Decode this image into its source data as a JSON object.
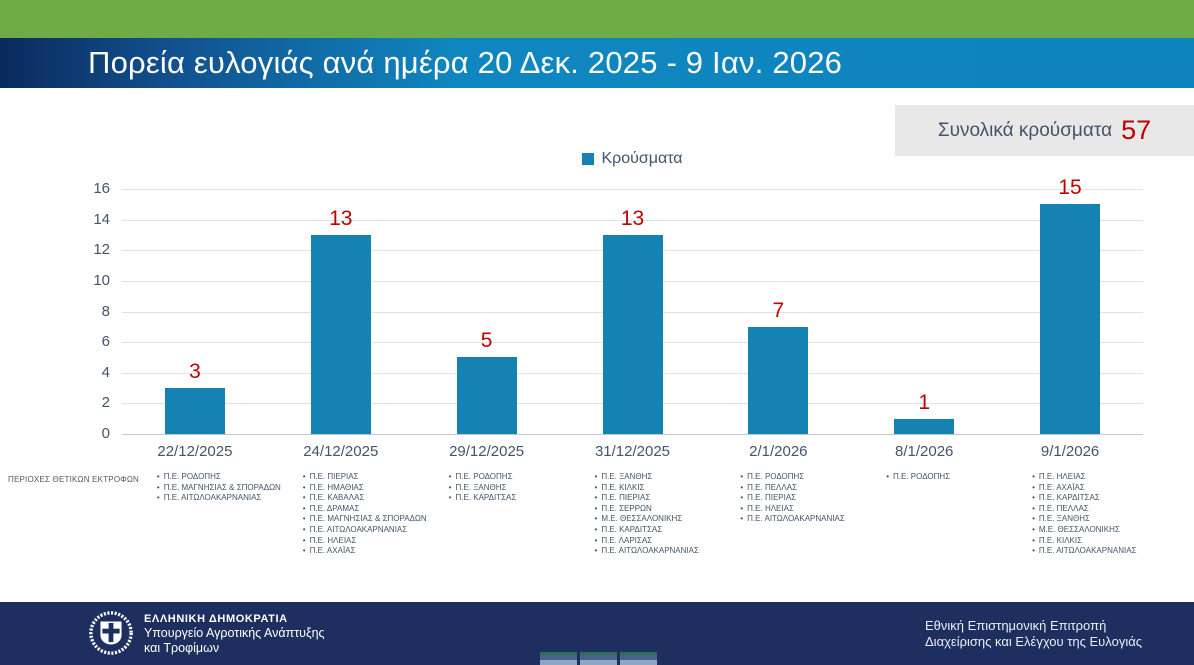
{
  "header": {
    "title": "Πορεία ευλογιάς ανά ημέρα 20 Δεκ. 2025 - 9 Ιαν. 2026"
  },
  "total": {
    "label": "Συνολικά κρούσματα",
    "value": "57"
  },
  "legend": {
    "label": "Κρούσματα"
  },
  "row_label": "ΠΕΡΙΟΧΕΣ ΘΕΤΙΚΩΝ ΕΚΤΡΟΦΩΝ",
  "chart_data": {
    "type": "bar",
    "title": "Πορεία ευλογιάς ανά ημέρα 20 Δεκ. 2025 - 9 Ιαν. 2026",
    "legend": [
      "Κρούσματα"
    ],
    "legend_position": "top",
    "grid": true,
    "categories": [
      "22/12/2025",
      "24/12/2025",
      "29/12/2025",
      "31/12/2025",
      "2/1/2026",
      "8/1/2026",
      "9/1/2026"
    ],
    "values": [
      3,
      13,
      5,
      13,
      7,
      1,
      15
    ],
    "ylim": [
      0,
      16
    ],
    "ytick_step": 2,
    "bar_color": "#1582B4",
    "value_label_color": "#C00000",
    "total_cases": 57,
    "regions_per_day": [
      [
        "Π.Ε. ΡΟΔΟΠΗΣ",
        "Π.Ε. ΜΑΓΝΗΣΙΑΣ & ΣΠΟΡΑΔΩΝ",
        "Π.Ε. ΑΙΤΩΛΟΑΚΑΡΝΑΝΙΑΣ"
      ],
      [
        "Π.Ε. ΠΙΕΡΙΑΣ",
        "Π.Ε. ΗΜΑΘΙΑΣ",
        "Π.Ε. ΚΑΒΑΛΑΣ",
        "Π.Ε. ΔΡΑΜΑΣ",
        "Π.Ε.  ΜΑΓΝΗΣΙΑΣ & ΣΠΟΡΑΔΩΝ",
        "Π.Ε. ΑΙΤΩΛΟΑΚΑΡΝΑΝΙΑΣ",
        "Π.Ε. ΗΛΕΙΑΣ",
        "Π.Ε. ΑΧΑΪΑΣ"
      ],
      [
        "Π.Ε. ΡΟΔΟΠΗΣ",
        "Π.Ε. ΞΑΝΘΗΣ",
        "Π.Ε. ΚΑΡΔΙΤΣΑΣ"
      ],
      [
        "Π.Ε. ΞΑΝΘΗΣ",
        "Π.Ε. ΚΙΛΚΙΣ",
        "Π.Ε. ΠΙΕΡΙΑΣ",
        "Π.Ε. ΣΕΡΡΩΝ",
        "Μ.Ε. ΘΕΣΣΑΛΟΝΙΚΗΣ",
        "Π.Ε. ΚΑΡΔΙΤΣΑΣ",
        "Π.Ε. ΛΑΡΙΣΑΣ",
        "Π.Ε. ΑΙΤΩΛΟΑΚΑΡΝΑΝΙΑΣ"
      ],
      [
        "Π.Ε. ΡΟΔΟΠΗΣ",
        "Π.Ε. ΠΕΛΛΑΣ",
        "Π.Ε. ΠΙΕΡΙΑΣ",
        "Π.Ε. ΗΛΕΙΑΣ",
        "Π.Ε. ΑΙΤΩΛΟΑΚΑΡΝΑΝΙΑΣ"
      ],
      [
        "Π.Ε. ΡΟΔΟΠΗΣ"
      ],
      [
        "Π.Ε. ΗΛΕΙΑΣ",
        "Π.Ε. ΑΧΑΪΑΣ",
        "Π.Ε. ΚΑΡΔΙΤΣΑΣ",
        "Π.Ε. ΠΕΛΛΑΣ",
        "Π.Ε. ΞΑΝΘΗΣ",
        "Μ.Ε. ΘΕΣΣΑΛΟΝΙΚΗΣ",
        "Π.Ε. ΚΙΛΚΙΣ",
        "Π.Ε. ΑΙΤΩΛΟΑΚΑΡΝΑΝΙΑΣ"
      ]
    ]
  },
  "footer": {
    "org_line1": "ΕΛΛΗΝΙΚΗ ΔΗΜΟΚΡΑΤΙΑ",
    "org_line2": "Υπουργείο Αγροτικής Ανάπτυξης",
    "org_line3": "και Τροφίμων",
    "committee_line1": "Εθνική Επιστημονική Επιτροπή",
    "committee_line2": "Διαχείρισης και Ελέγχου της Ευλογιάς"
  },
  "colors": {
    "top_band_green": "#6FAC47",
    "title_gradient_start": "#0A2A5C",
    "title_gradient_end": "#0D84BD",
    "bar_blue": "#1582B4",
    "accent_red": "#C00000",
    "text_slate": "#44546A",
    "total_box_gray": "#E9E8E8",
    "footer_navy": "#1E2F5F"
  }
}
